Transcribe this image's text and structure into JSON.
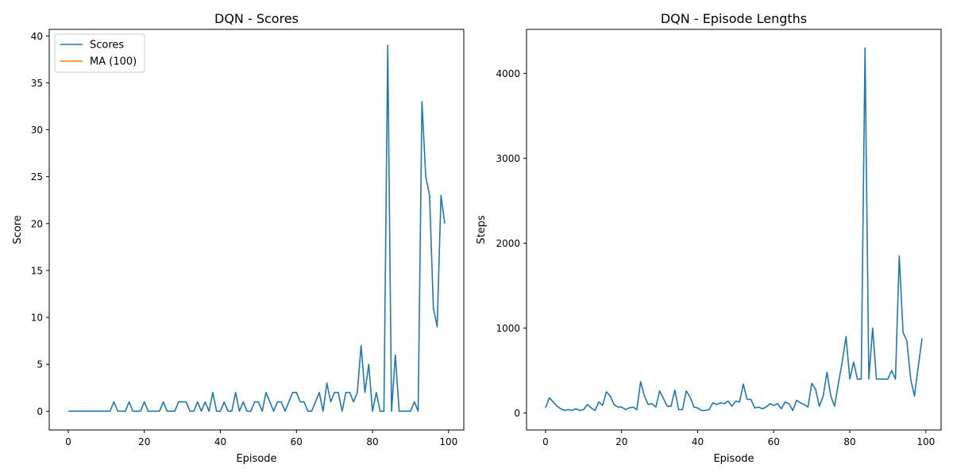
{
  "chart_data": [
    {
      "type": "line",
      "title": "DQN - Scores",
      "xlabel": "Episode",
      "ylabel": "Score",
      "xlim": [
        -5,
        104
      ],
      "ylim": [
        -2,
        40.7
      ],
      "xticks": [
        0,
        20,
        40,
        60,
        80,
        100
      ],
      "yticks": [
        0,
        5,
        10,
        15,
        20,
        25,
        30,
        35,
        40
      ],
      "legend": {
        "position": "top-left",
        "entries": [
          "Scores",
          "MA (100)"
        ]
      },
      "grid": false,
      "series": [
        {
          "name": "Scores",
          "color": "#1f77b4",
          "x": [
            0,
            1,
            2,
            3,
            4,
            5,
            6,
            7,
            8,
            9,
            10,
            11,
            12,
            13,
            14,
            15,
            16,
            17,
            18,
            19,
            20,
            21,
            22,
            23,
            24,
            25,
            26,
            27,
            28,
            29,
            30,
            31,
            32,
            33,
            34,
            35,
            36,
            37,
            38,
            39,
            40,
            41,
            42,
            43,
            44,
            45,
            46,
            47,
            48,
            49,
            50,
            51,
            52,
            53,
            54,
            55,
            56,
            57,
            58,
            59,
            60,
            61,
            62,
            63,
            64,
            65,
            66,
            67,
            68,
            69,
            70,
            71,
            72,
            73,
            74,
            75,
            76,
            77,
            78,
            79,
            80,
            81,
            82,
            83,
            84,
            85,
            86,
            87,
            88,
            89,
            90,
            91,
            92,
            93,
            94,
            95,
            96,
            97,
            98,
            99
          ],
          "y": [
            0,
            0,
            0,
            0,
            0,
            0,
            0,
            0,
            0,
            0,
            0,
            0,
            1,
            0,
            0,
            0,
            1,
            0,
            0,
            0,
            1,
            0,
            0,
            0,
            0,
            1,
            0,
            0,
            0,
            1,
            1,
            1,
            0,
            0,
            1,
            0,
            1,
            0,
            2,
            0,
            0,
            1,
            0,
            0,
            2,
            0,
            1,
            0,
            0,
            1,
            1,
            0,
            2,
            1,
            0,
            1,
            1,
            0,
            1,
            2,
            2,
            1,
            1,
            0,
            0,
            1,
            2,
            0,
            3,
            1,
            2,
            2,
            0,
            2,
            2,
            1,
            2,
            7,
            2,
            5,
            0,
            2,
            0,
            0,
            39,
            0,
            6,
            0,
            0,
            0,
            0,
            1,
            0,
            33,
            25,
            23,
            11,
            9,
            23,
            20
          ]
        },
        {
          "name": "MA (100)",
          "color": "#ff7f0e",
          "x": [],
          "y": []
        }
      ]
    },
    {
      "type": "line",
      "title": "DQN - Episode Lengths",
      "xlabel": "Episode",
      "ylabel": "Steps",
      "xlim": [
        -5,
        104
      ],
      "ylim": [
        -200,
        4520
      ],
      "xticks": [
        0,
        20,
        40,
        60,
        80,
        100
      ],
      "yticks": [
        0,
        1000,
        2000,
        3000,
        4000
      ],
      "grid": false,
      "series": [
        {
          "color": "#1f77b4",
          "x": [
            0,
            1,
            2,
            3,
            4,
            5,
            6,
            7,
            8,
            9,
            10,
            11,
            12,
            13,
            14,
            15,
            16,
            17,
            18,
            19,
            20,
            21,
            22,
            23,
            24,
            25,
            26,
            27,
            28,
            29,
            30,
            31,
            32,
            33,
            34,
            35,
            36,
            37,
            38,
            39,
            40,
            41,
            42,
            43,
            44,
            45,
            46,
            47,
            48,
            49,
            50,
            51,
            52,
            53,
            54,
            55,
            56,
            57,
            58,
            59,
            60,
            61,
            62,
            63,
            64,
            65,
            66,
            67,
            68,
            69,
            70,
            71,
            72,
            73,
            74,
            75,
            76,
            77,
            78,
            79,
            80,
            81,
            82,
            83,
            84,
            85,
            86,
            87,
            88,
            89,
            90,
            91,
            92,
            93,
            94,
            95,
            96,
            97,
            98,
            99
          ],
          "y": [
            60,
            180,
            130,
            80,
            50,
            30,
            40,
            30,
            50,
            30,
            40,
            100,
            60,
            30,
            130,
            90,
            250,
            200,
            100,
            70,
            70,
            40,
            60,
            70,
            40,
            370,
            200,
            100,
            110,
            70,
            260,
            170,
            80,
            80,
            270,
            40,
            40,
            260,
            190,
            70,
            60,
            30,
            30,
            40,
            120,
            100,
            120,
            110,
            140,
            80,
            140,
            130,
            340,
            160,
            160,
            60,
            70,
            50,
            70,
            110,
            90,
            110,
            50,
            130,
            110,
            30,
            150,
            120,
            100,
            70,
            350,
            280,
            80,
            200,
            480,
            200,
            80,
            350,
            600,
            900,
            400,
            600,
            400,
            400,
            4300,
            400,
            1000,
            400,
            400,
            400,
            400,
            500,
            400,
            1850,
            950,
            850,
            400,
            200,
            550,
            880
          ]
        }
      ]
    }
  ]
}
